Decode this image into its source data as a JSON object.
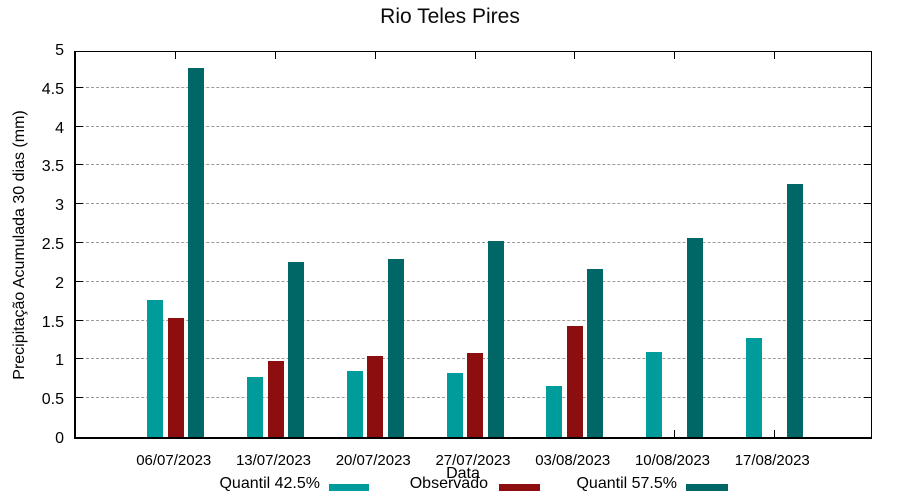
{
  "title": "Rio Teles Pires",
  "chart_data": {
    "type": "bar",
    "title": "Rio Teles Pires",
    "xlabel": "Data",
    "ylabel": "Precipitação Acumulada 30 dias (mm)",
    "ylim": [
      0,
      5
    ],
    "ytick_step": 0.5,
    "ytick_labels": [
      "0",
      "0.5",
      "1",
      "1.5",
      "2",
      "2.5",
      "3",
      "3.5",
      "4",
      "4.5",
      "5"
    ],
    "grid": "horizontal dashed gridlines at each 0.5",
    "legend_position": "bottom",
    "categories": [
      "06/07/2023",
      "13/07/2023",
      "20/07/2023",
      "27/07/2023",
      "03/08/2023",
      "10/08/2023",
      "17/08/2023"
    ],
    "series": [
      {
        "name": "Quantil 42.5%",
        "color": "#009b9b",
        "values": [
          1.76,
          0.77,
          0.85,
          0.82,
          0.66,
          1.09,
          1.28
        ]
      },
      {
        "name": "Observado",
        "color": "#8c0e0e",
        "values": [
          1.53,
          0.98,
          1.05,
          1.08,
          1.43,
          null,
          null
        ]
      },
      {
        "name": "Quantil 57.5%",
        "color": "#006666",
        "values": [
          4.75,
          2.25,
          2.29,
          2.52,
          2.16,
          2.57,
          3.26
        ]
      }
    ]
  }
}
